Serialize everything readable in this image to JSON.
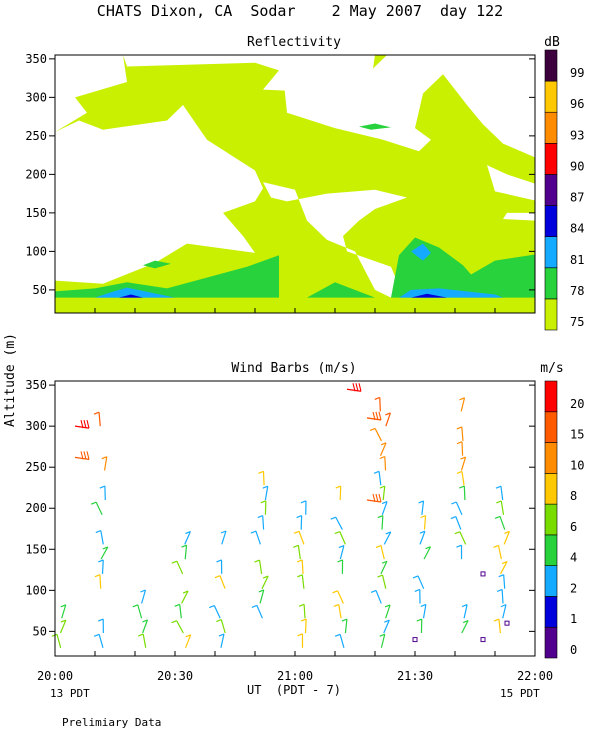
{
  "header": {
    "title": "CHATS Dixon, CA  Sodar    2 May 2007  day 122",
    "footer_note": "Prelimiary Data",
    "left_date": "13 PDT",
    "right_date": "15 PDT",
    "y_label": "Altitude (m)"
  },
  "chart_data": [
    {
      "type": "heatmap",
      "title": "Reflectivity",
      "x": [
        "20:00",
        "20:10",
        "20:20",
        "20:30",
        "20:40",
        "20:50",
        "21:00",
        "21:10",
        "21:20",
        "21:30",
        "21:40",
        "21:50",
        "22:00"
      ],
      "xticks": [
        "20:00",
        "20:30",
        "21:00",
        "21:30",
        "22:00"
      ],
      "yticks": [
        50,
        100,
        150,
        200,
        250,
        300,
        350
      ],
      "ylim": [
        20,
        355
      ],
      "colorbar": {
        "unit": "dB",
        "levels": [
          75,
          78,
          81,
          84,
          87,
          90,
          93,
          96,
          99
        ],
        "colors": [
          "#c8f000",
          "#28d23c",
          "#14aaff",
          "#0000dc",
          "#50008c",
          "#ff0000",
          "#ff8c00",
          "#ffc800",
          "#3c003c"
        ]
      },
      "regions": [
        {
          "level": 78,
          "label": "lower green band 20:00-21:40 at 40-60 m"
        },
        {
          "level": 78,
          "label": "green rise 21:30-22:00 up to 140 m"
        },
        {
          "level": 78,
          "label": "small green patch near 21:15, 265 m"
        },
        {
          "level": 81,
          "label": "blue pocket near 21:32, 100 m"
        },
        {
          "level": 84,
          "label": "dark blue core near 20:12 and 21:32 at 40 m"
        }
      ]
    },
    {
      "type": "scatter",
      "title": "Wind Barbs (m/s)",
      "xticks": [
        "20:00",
        "20:30",
        "21:00",
        "21:30",
        "22:00"
      ],
      "yticks": [
        50,
        100,
        150,
        200,
        250,
        300,
        350
      ],
      "ylim": [
        20,
        355
      ],
      "xlabel": "UT  (PDT - 7)",
      "colorbar": {
        "unit": "m/s",
        "levels": [
          0,
          1,
          2,
          4,
          6,
          8,
          10,
          15,
          20
        ],
        "colors": [
          "#50008c",
          "#0000dc",
          "#14aaff",
          "#28d23c",
          "#78dc00",
          "#ffc800",
          "#ff8c00",
          "#ff5a00",
          "#ff0000"
        ]
      },
      "note": "wind barbs at ~10-minute intervals, 20-360 m altitude"
    }
  ]
}
